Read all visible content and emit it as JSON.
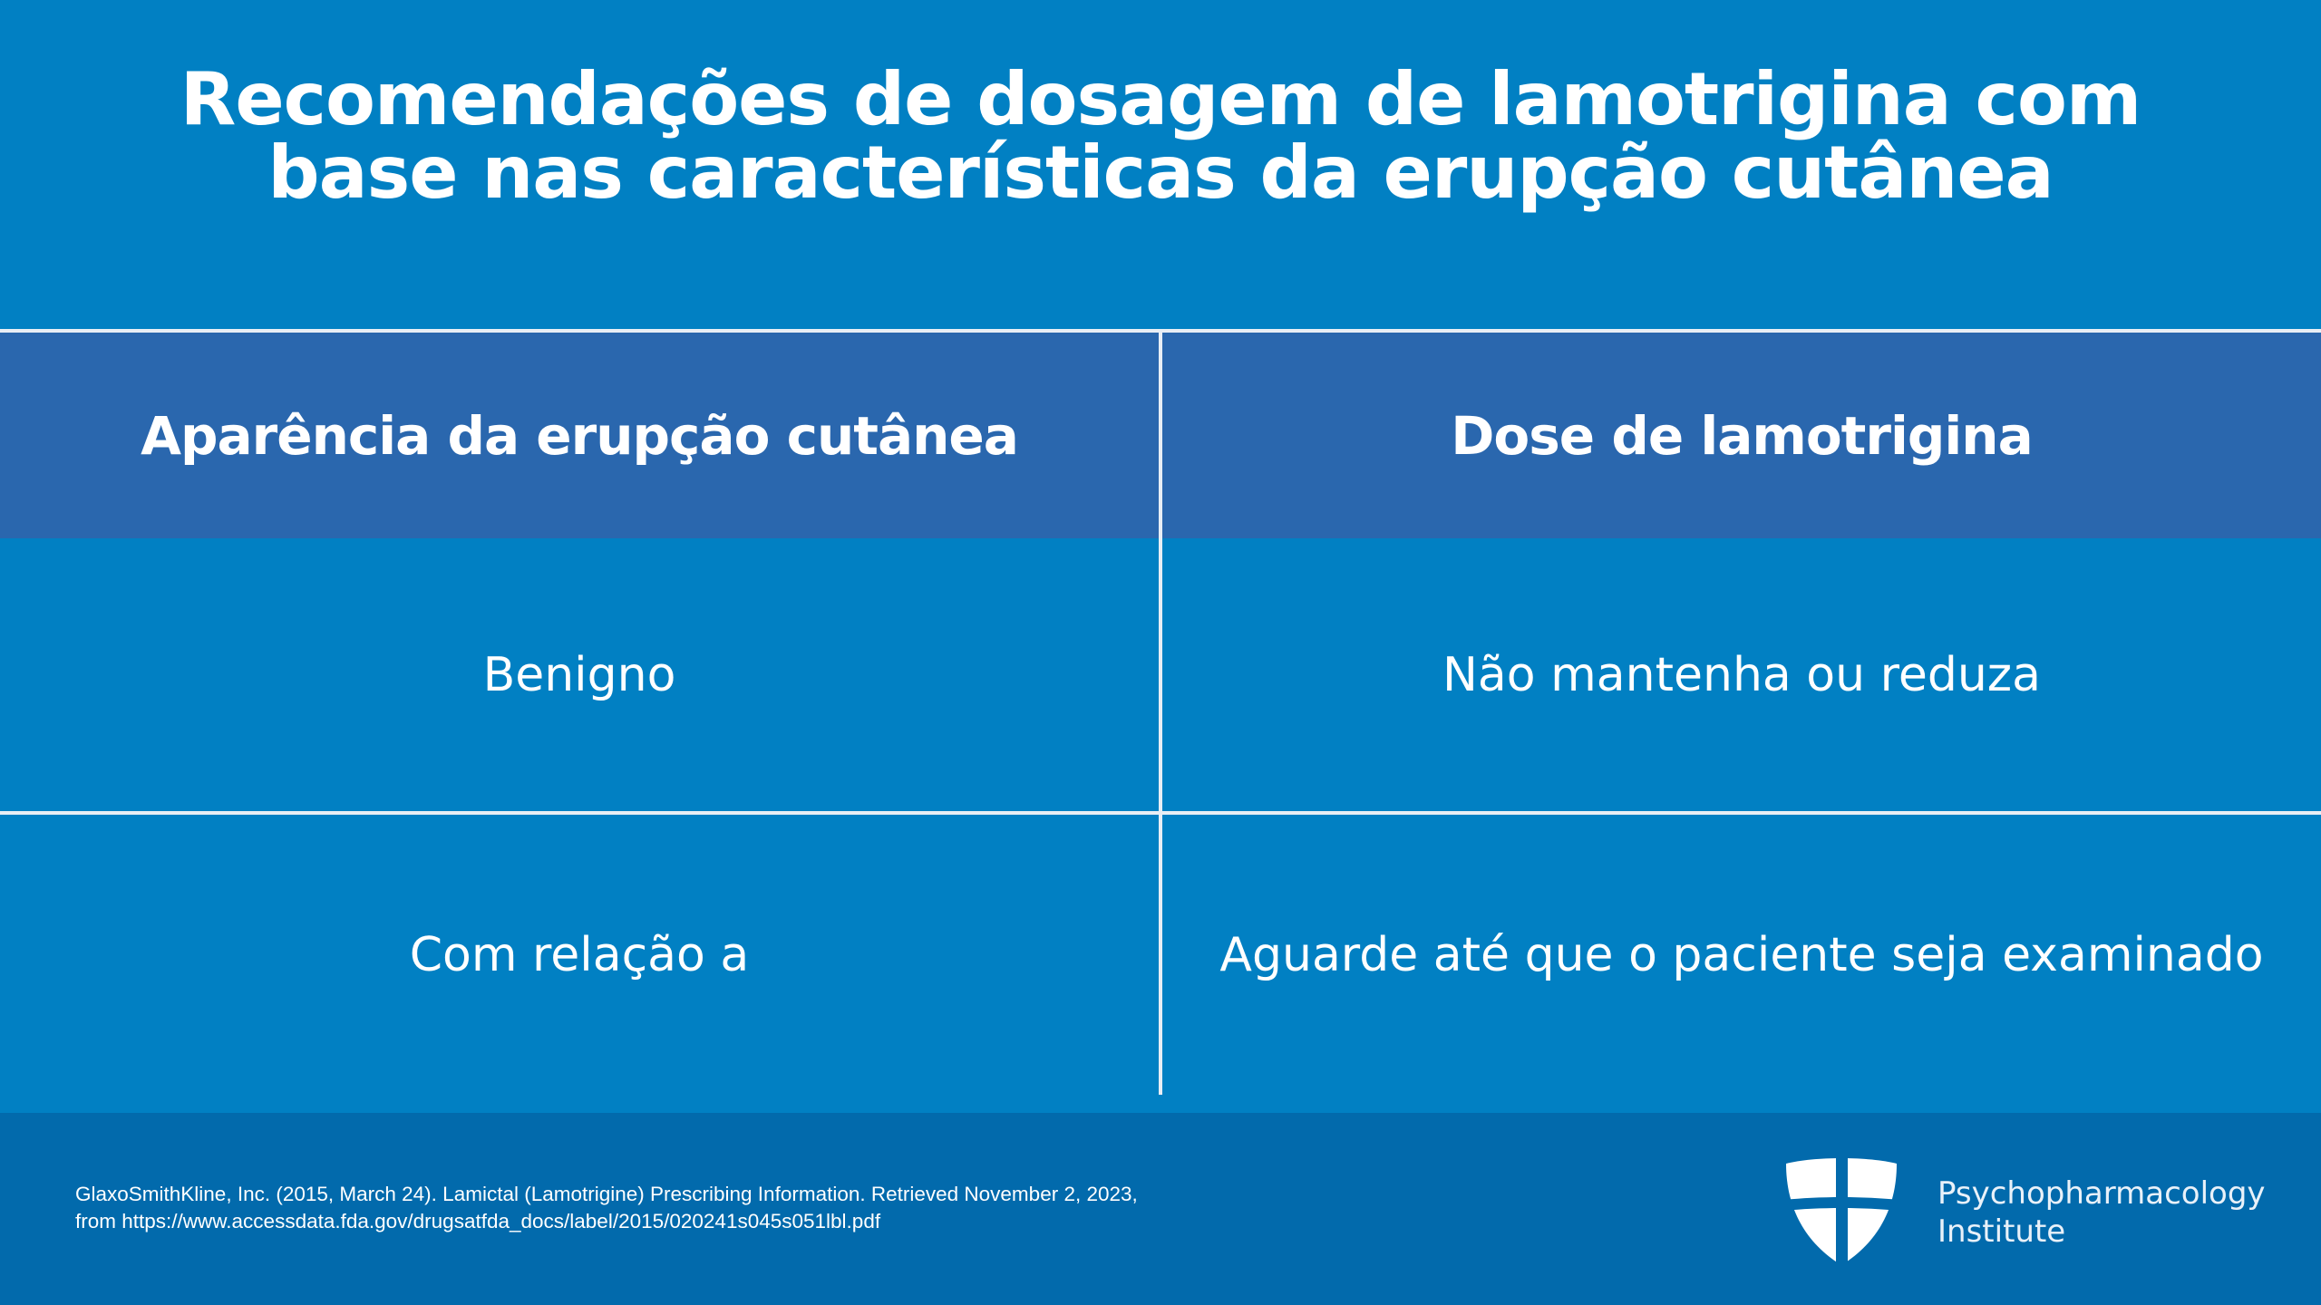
{
  "title": {
    "line1": "Recomendações de dosagem de lamotrigina com",
    "line2": "base nas características da erupção cutânea"
  },
  "table": {
    "headers": [
      "Aparência da erupção cutânea",
      "Dose de lamotrigina"
    ],
    "rows": [
      [
        "Benigno",
        "Não mantenha ou reduza"
      ],
      [
        "Com relação a",
        "Aguarde até que o paciente seja examinado"
      ]
    ]
  },
  "footer": {
    "citation_line1": "GlaxoSmithKline, Inc. (2015, March 24). Lamictal (Lamotrigine) Prescribing Information. Retrieved November 2, 2023,",
    "citation_line2": "from https://www.accessdata.fda.gov/drugsatfda_docs/label/2015/020241s045s051lbl.pdf",
    "brand_line1": "Psychopharmacology",
    "brand_line2": "Institute",
    "logo_icon": "shield-cross-icon"
  },
  "colors": {
    "background": "#0180c3",
    "header_band": "#2a67ae",
    "footer": "#026aac",
    "rules": "#e8eef5"
  }
}
